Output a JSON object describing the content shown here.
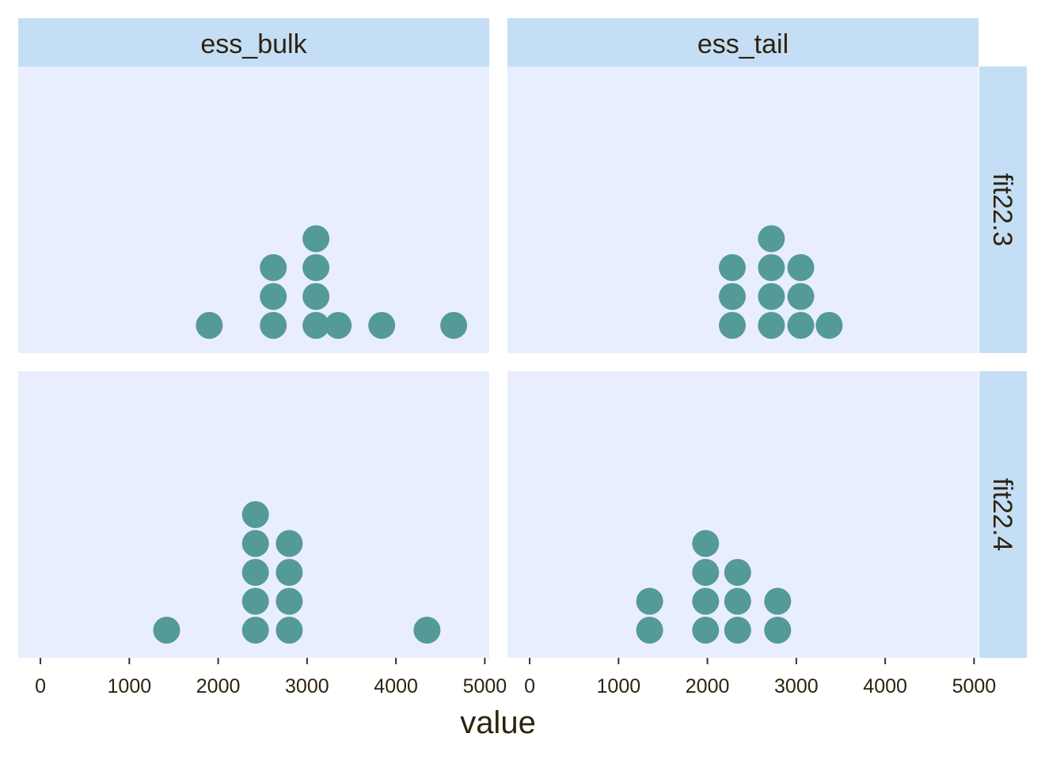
{
  "chart_data": {
    "type": "scatter",
    "subtype": "faceted-dotplot",
    "xlabel": "value",
    "xlim": [
      -250,
      5050
    ],
    "x_ticks": [
      0,
      1000,
      2000,
      3000,
      4000,
      5000
    ],
    "x_tick_labels": [
      "0",
      "1000",
      "2000",
      "3000",
      "4000",
      "5000"
    ],
    "grid": false,
    "column_facets": [
      "ess_bulk",
      "ess_tail"
    ],
    "row_facets": [
      "fit22.3",
      "fit22.4"
    ],
    "colors": {
      "dot": "#549a98",
      "panel_background": "#e8eefe",
      "strip_background": "#c4def5",
      "text": "#2e2310"
    },
    "panels": [
      {
        "column": "ess_bulk",
        "row": "fit22.3",
        "stacks": [
          {
            "x": 1900,
            "count": 1
          },
          {
            "x": 2620,
            "count": 3
          },
          {
            "x": 3100,
            "count": 4
          },
          {
            "x": 3350,
            "count": 1
          },
          {
            "x": 3840,
            "count": 1
          },
          {
            "x": 4650,
            "count": 1
          }
        ]
      },
      {
        "column": "ess_tail",
        "row": "fit22.3",
        "stacks": [
          {
            "x": 2280,
            "count": 3
          },
          {
            "x": 2720,
            "count": 4
          },
          {
            "x": 3050,
            "count": 3
          },
          {
            "x": 3370,
            "count": 1
          }
        ]
      },
      {
        "column": "ess_bulk",
        "row": "fit22.4",
        "stacks": [
          {
            "x": 1420,
            "count": 1
          },
          {
            "x": 2420,
            "count": 5
          },
          {
            "x": 2800,
            "count": 4
          },
          {
            "x": 4350,
            "count": 1
          }
        ]
      },
      {
        "column": "ess_tail",
        "row": "fit22.4",
        "stacks": [
          {
            "x": 1350,
            "count": 2
          },
          {
            "x": 1980,
            "count": 4
          },
          {
            "x": 2340,
            "count": 3
          },
          {
            "x": 2790,
            "count": 2
          }
        ]
      }
    ]
  }
}
